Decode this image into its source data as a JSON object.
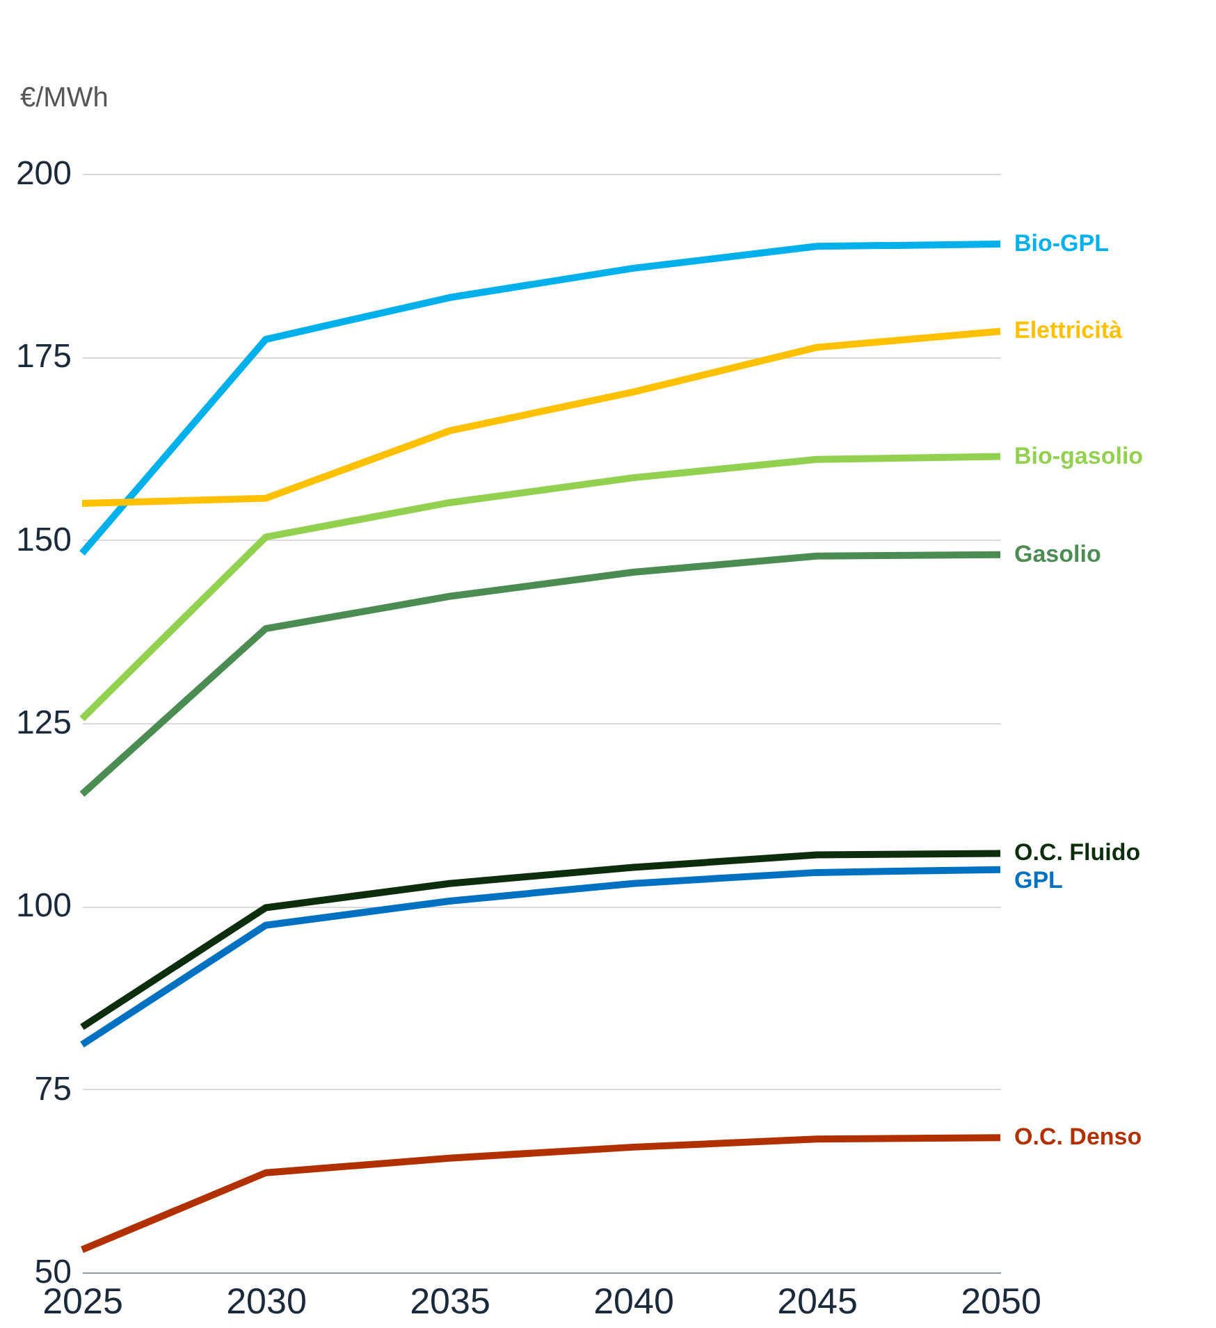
{
  "chart_data": {
    "type": "line",
    "ylabel": "€/MWh",
    "x": [
      2025,
      2030,
      2035,
      2040,
      2045,
      2050
    ],
    "xlim": [
      2025,
      2050
    ],
    "xticks": [
      2025,
      2030,
      2035,
      2040,
      2045,
      2050
    ],
    "ylim": [
      50,
      200
    ],
    "yticks": [
      50,
      75,
      100,
      125,
      150,
      175,
      200
    ],
    "grid": "y",
    "series": [
      {
        "name": "Bio-GPL",
        "color": "#00b0ea",
        "values": [
          148.2,
          177.4,
          183.1,
          187.1,
          190.1,
          190.4
        ]
      },
      {
        "name": "Elettricità",
        "color": "#ffc000",
        "values": [
          155,
          155.7,
          164.9,
          170.2,
          176.3,
          178.5
        ]
      },
      {
        "name": "Bio-gasolio",
        "color": "#92d050",
        "values": [
          125.6,
          150.4,
          155.1,
          158.5,
          161,
          161.4
        ]
      },
      {
        "name": "Gasolio",
        "color": "#4a8c52",
        "values": [
          115.3,
          137.9,
          142.3,
          145.6,
          147.8,
          148
        ]
      },
      {
        "name": "O.C. Fluido",
        "color": "#0d2e0d",
        "values": [
          83.5,
          99.8,
          103.1,
          105.3,
          107,
          107.2
        ]
      },
      {
        "name": "GPL",
        "color": "#0070c0",
        "values": [
          81.1,
          97.4,
          100.7,
          103.1,
          104.6,
          105
        ]
      },
      {
        "name": "O.C. Denso",
        "color": "#b03000",
        "values": [
          53.1,
          63.6,
          65.6,
          67.1,
          68.2,
          68.4
        ]
      }
    ]
  }
}
